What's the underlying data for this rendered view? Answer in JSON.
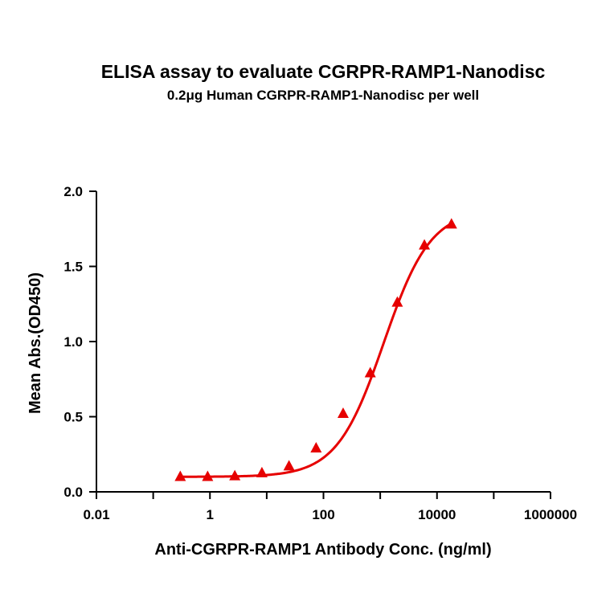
{
  "chart_data": {
    "type": "scatter",
    "title": "ELISA assay to evaluate CGRPR-RAMP1-Nanodisc",
    "subtitle": "0.2μg Human CGRPR-RAMP1-Nanodisc per well",
    "xlabel": "Anti-CGRPR-RAMP1 Antibody Conc. (ng/ml)",
    "ylabel": "Mean Abs.(OD450)",
    "xscale": "log",
    "xlim": [
      0.01,
      1000000
    ],
    "ylim": [
      0,
      2.0
    ],
    "x_ticks": [
      0.01,
      1,
      100,
      10000,
      1000000
    ],
    "x_tick_labels": [
      "0.01",
      "1",
      "100",
      "10000",
      "1000000"
    ],
    "y_ticks": [
      0,
      0.5,
      1.0,
      1.5,
      2.0
    ],
    "y_tick_labels": [
      "0.0",
      "0.5",
      "1.0",
      "1.5",
      "2.0"
    ],
    "grid": false,
    "series": [
      {
        "color": "#e60000",
        "marker": "triangle",
        "fit": "4PL",
        "x": [
          0.3,
          0.91,
          2.74,
          8.23,
          24.7,
          74.1,
          222,
          667,
          2000,
          6000,
          18000
        ],
        "y": [
          0.1,
          0.1,
          0.105,
          0.125,
          0.17,
          0.29,
          0.52,
          0.79,
          1.26,
          1.64,
          1.78
        ]
      }
    ],
    "fit_params": {
      "bottom": 0.1,
      "top": 1.88,
      "ec50": 1150,
      "hill": 1.05
    }
  }
}
